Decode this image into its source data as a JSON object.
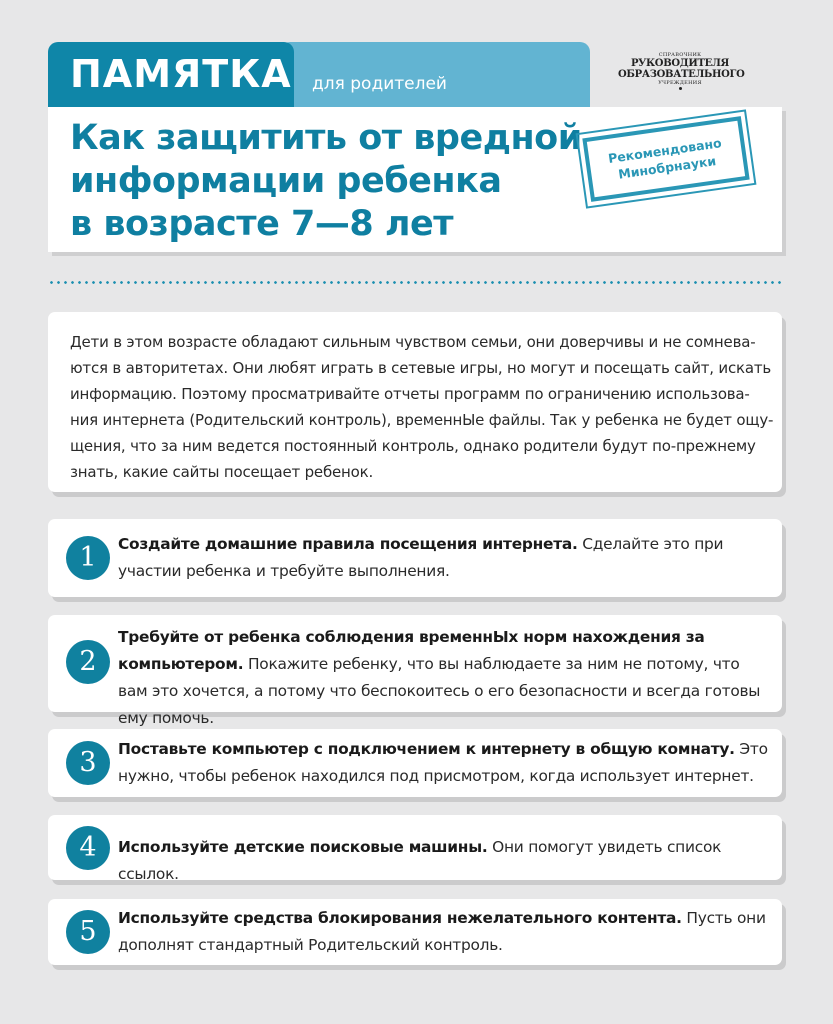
{
  "header": {
    "tab_main": "ПАМЯТКА",
    "tab_sub": "для родителей",
    "logo": {
      "top": "СПРАВОЧНИК",
      "line1": "РУКОВОДИТЕЛЯ",
      "line2": "ОБРАЗОВАТЕЛЬНОГО",
      "bottom": "УЧРЕЖДЕНИЯ"
    },
    "title_lines": [
      "Как защитить от вредной",
      "информации ребенка",
      "в возрасте 7—8 лет"
    ],
    "stamp": [
      "Рекомендовано",
      "Минобрнауки"
    ]
  },
  "colors": {
    "accent_dark": "#0f86a8",
    "accent_light": "#62b4d2",
    "background": "#e7e7e8"
  },
  "intro_lines": [
    "Дети в этом возрасте обладают сильным чувством семьи, они доверчивы и не сомнева-",
    "ются в авторитетах. Они любят играть в сетевые игры, но могут и посещать сайт, искать",
    "информацию. Поэтому просматривайте отчеты программ по ограничению использова-",
    "ния интернета (Родительский контроль), временнЫе файлы. Так у ребенка не будет ощу-",
    "щения, что за ним ведется постоянный контроль, однако родители будут по-прежнему",
    "знать, какие сайты посещает ребенок."
  ],
  "items": [
    {
      "number": "1",
      "bold": "Создайте домашние правила посещения интернета.",
      "text": "Сделайте это при участии ребенка и требуйте выполнения."
    },
    {
      "number": "2",
      "bold": "Требуйте от ребенка соблюдения временнЫх норм нахождения за компьюте­ром.",
      "text": "Покажите ребенку, что вы наблюдаете за ним не потому, что вам это хочет­ся, а потому что беспокоитесь о его безопасности и всегда готовы ему помочь."
    },
    {
      "number": "3",
      "bold": "Поставьте компьютер с подключением к интернету в общую комнату.",
      "text": "Это нуж­но, чтобы ребенок находился под присмотром, когда использует интернет."
    },
    {
      "number": "4",
      "bold": "Используйте детские поисковые машины.",
      "text": "Они помогут увидеть список ссылок."
    },
    {
      "number": "5",
      "bold": "Используйте средства блокирования нежелательного контента.",
      "text": "Пусть они дополнят стандартный Родительский контроль."
    }
  ]
}
